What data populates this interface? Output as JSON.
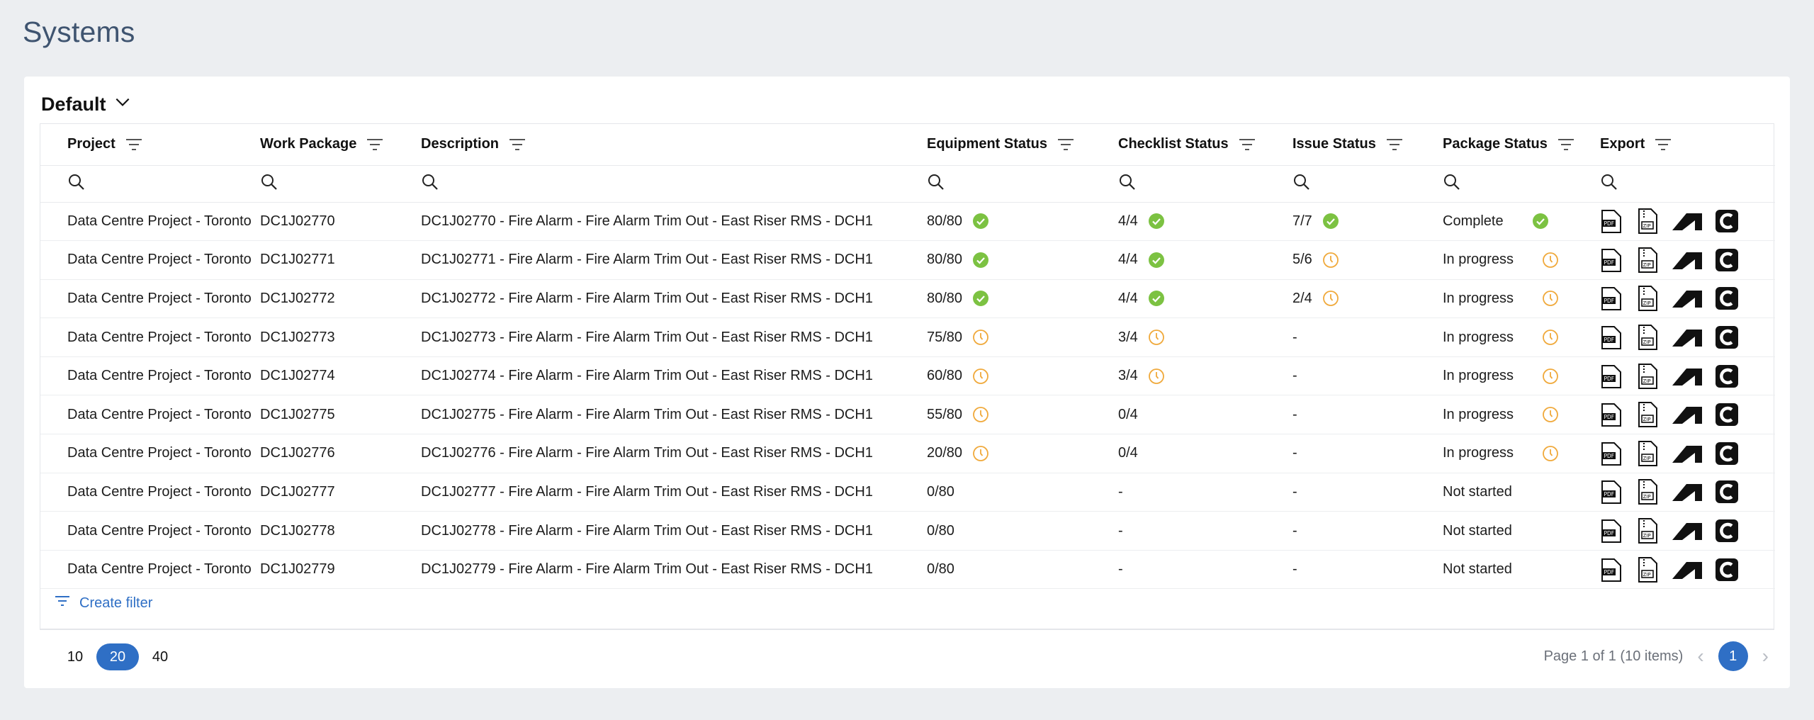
{
  "page": {
    "title": "Systems"
  },
  "view": {
    "label": "Default"
  },
  "columns": [
    {
      "label": "Project"
    },
    {
      "label": "Work Package"
    },
    {
      "label": "Description"
    },
    {
      "label": "Equipment Status"
    },
    {
      "label": "Checklist Status"
    },
    {
      "label": "Issue Status"
    },
    {
      "label": "Package Status"
    },
    {
      "label": "Export"
    }
  ],
  "colors": {
    "accent": "#2f6fc5",
    "complete": "#7cc242",
    "progress": "#f0a93b"
  },
  "rows": [
    {
      "project": "Data Centre Project - Toronto",
      "work_package": "DC1J02770",
      "description": "DC1J02770 - Fire Alarm - Fire Alarm Trim Out - East Riser RMS - DCH1",
      "equipment": "80/80",
      "equipment_icon": "check-circle-icon",
      "checklist": "4/4",
      "checklist_icon": "check-circle-icon",
      "issue": "7/7",
      "issue_icon": "check-circle-icon",
      "package": "Complete",
      "package_icon": "check-circle-icon"
    },
    {
      "project": "Data Centre Project - Toronto",
      "work_package": "DC1J02771",
      "description": "DC1J02771 - Fire Alarm - Fire Alarm Trim Out - East Riser RMS - DCH1",
      "equipment": "80/80",
      "equipment_icon": "check-circle-icon",
      "checklist": "4/4",
      "checklist_icon": "check-circle-icon",
      "issue": "5/6",
      "issue_icon": "clock-icon",
      "package": "In progress",
      "package_icon": "clock-icon"
    },
    {
      "project": "Data Centre Project - Toronto",
      "work_package": "DC1J02772",
      "description": "DC1J02772 - Fire Alarm - Fire Alarm Trim Out - East Riser RMS - DCH1",
      "equipment": "80/80",
      "equipment_icon": "check-circle-icon",
      "checklist": "4/4",
      "checklist_icon": "check-circle-icon",
      "issue": "2/4",
      "issue_icon": "clock-icon",
      "package": "In progress",
      "package_icon": "clock-icon"
    },
    {
      "project": "Data Centre Project - Toronto",
      "work_package": "DC1J02773",
      "description": "DC1J02773 - Fire Alarm - Fire Alarm Trim Out - East Riser RMS - DCH1",
      "equipment": "75/80",
      "equipment_icon": "clock-icon",
      "checklist": "3/4",
      "checklist_icon": "clock-icon",
      "issue": "-",
      "issue_icon": "",
      "package": "In progress",
      "package_icon": "clock-icon"
    },
    {
      "project": "Data Centre Project - Toronto",
      "work_package": "DC1J02774",
      "description": "DC1J02774 - Fire Alarm - Fire Alarm Trim Out - East Riser RMS - DCH1",
      "equipment": "60/80",
      "equipment_icon": "clock-icon",
      "checklist": "3/4",
      "checklist_icon": "clock-icon",
      "issue": "-",
      "issue_icon": "",
      "package": "In progress",
      "package_icon": "clock-icon"
    },
    {
      "project": "Data Centre Project - Toronto",
      "work_package": "DC1J02775",
      "description": "DC1J02775 - Fire Alarm - Fire Alarm Trim Out - East Riser RMS - DCH1",
      "equipment": "55/80",
      "equipment_icon": "clock-icon",
      "checklist": "0/4",
      "checklist_icon": "",
      "issue": "-",
      "issue_icon": "",
      "package": "In progress",
      "package_icon": "clock-icon"
    },
    {
      "project": "Data Centre Project - Toronto",
      "work_package": "DC1J02776",
      "description": "DC1J02776 - Fire Alarm - Fire Alarm Trim Out - East Riser RMS - DCH1",
      "equipment": "20/80",
      "equipment_icon": "clock-icon",
      "checklist": "0/4",
      "checklist_icon": "",
      "issue": "-",
      "issue_icon": "",
      "package": "In progress",
      "package_icon": "clock-icon"
    },
    {
      "project": "Data Centre Project - Toronto",
      "work_package": "DC1J02777",
      "description": "DC1J02777 - Fire Alarm - Fire Alarm Trim Out - East Riser RMS - DCH1",
      "equipment": "0/80",
      "equipment_icon": "",
      "checklist": "-",
      "checklist_icon": "",
      "issue": "-",
      "issue_icon": "",
      "package": "Not started",
      "package_icon": ""
    },
    {
      "project": "Data Centre Project - Toronto",
      "work_package": "DC1J02778",
      "description": "DC1J02778 - Fire Alarm - Fire Alarm Trim Out - East Riser RMS - DCH1",
      "equipment": "0/80",
      "equipment_icon": "",
      "checklist": "-",
      "checklist_icon": "",
      "issue": "-",
      "issue_icon": "",
      "package": "Not started",
      "package_icon": ""
    },
    {
      "project": "Data Centre Project - Toronto",
      "work_package": "DC1J02779",
      "description": "DC1J02779 - Fire Alarm - Fire Alarm Trim Out - East Riser RMS - DCH1",
      "equipment": "0/80",
      "equipment_icon": "",
      "checklist": "-",
      "checklist_icon": "",
      "issue": "-",
      "issue_icon": "",
      "package": "Not started",
      "package_icon": ""
    }
  ],
  "export_icons": [
    "pdf-file-icon",
    "zip-file-icon",
    "autodesk-icon",
    "c-logo-icon"
  ],
  "create_filter": {
    "label": "Create filter"
  },
  "pagination": {
    "sizes": [
      "10",
      "20",
      "40"
    ],
    "active_size": "20",
    "info": "Page 1 of 1 (10 items)",
    "current_page": "1"
  }
}
